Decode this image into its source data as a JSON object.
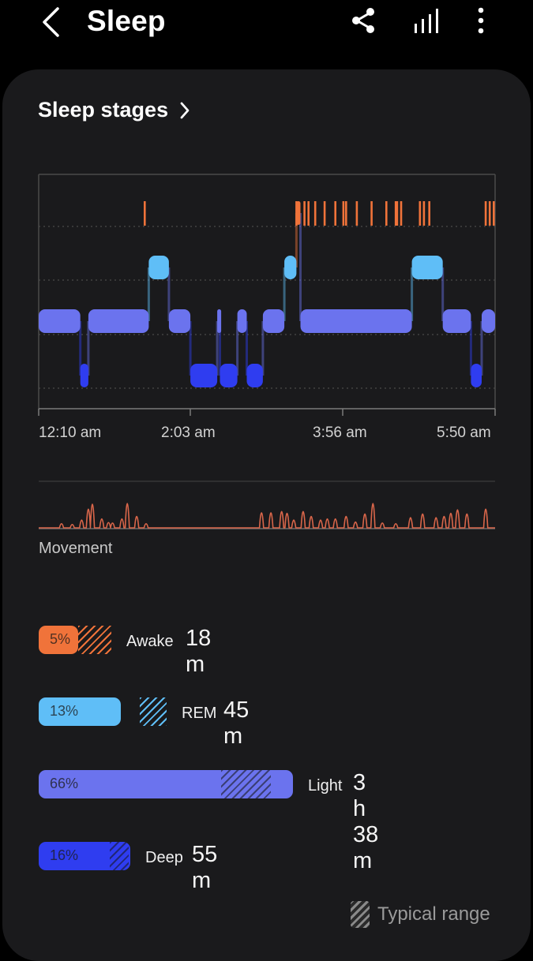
{
  "header": {
    "title": "Sleep"
  },
  "sleep_stages": {
    "title": "Sleep stages",
    "time_ticks": [
      "12:10 am",
      "2:03 am",
      "3:56 am",
      "5:50 am"
    ],
    "stage_colors": {
      "awake": "#f0733a",
      "rem": "#5fbef7",
      "light": "#6b73ee",
      "deep": "#2f3df0"
    },
    "hypnogram": [
      {
        "stage": "light",
        "start": "12:10",
        "end": "12:41"
      },
      {
        "stage": "deep",
        "start": "12:41",
        "end": "12:47"
      },
      {
        "stage": "light",
        "start": "12:47",
        "end": "1:32"
      },
      {
        "stage": "rem",
        "start": "1:32",
        "end": "1:47"
      },
      {
        "stage": "light",
        "start": "1:47",
        "end": "2:03"
      },
      {
        "stage": "deep",
        "start": "2:03",
        "end": "2:23"
      },
      {
        "stage": "light",
        "start": "2:23",
        "end": "2:25"
      },
      {
        "stage": "deep",
        "start": "2:25",
        "end": "2:38"
      },
      {
        "stage": "light",
        "start": "2:38",
        "end": "2:45"
      },
      {
        "stage": "deep",
        "start": "2:45",
        "end": "2:57"
      },
      {
        "stage": "light",
        "start": "2:57",
        "end": "3:13"
      },
      {
        "stage": "rem",
        "start": "3:13",
        "end": "3:22"
      },
      {
        "stage": "awake",
        "start": "3:22",
        "end": "3:25"
      },
      {
        "stage": "light",
        "start": "3:25",
        "end": "4:48"
      },
      {
        "stage": "rem",
        "start": "4:48",
        "end": "5:11"
      },
      {
        "stage": "light",
        "start": "5:11",
        "end": "5:32"
      },
      {
        "stage": "deep",
        "start": "5:32",
        "end": "5:40"
      },
      {
        "stage": "light",
        "start": "5:40",
        "end": "5:50"
      }
    ],
    "awake_marks": [
      "1:29",
      "3:22",
      "3:28",
      "3:31",
      "3:36",
      "3:43",
      "3:51",
      "3:57",
      "3:59",
      "4:07",
      "4:18",
      "4:29",
      "4:36",
      "4:37",
      "4:40",
      "4:54",
      "4:57",
      "5:01",
      "5:43",
      "5:46",
      "5:49"
    ]
  },
  "movement": {
    "label": "Movement",
    "events": [
      {
        "time": "12:27",
        "level": 0.15
      },
      {
        "time": "12:35",
        "level": 0.12
      },
      {
        "time": "12:42",
        "level": 0.3
      },
      {
        "time": "12:47",
        "level": 0.75
      },
      {
        "time": "12:50",
        "level": 0.95
      },
      {
        "time": "12:57",
        "level": 0.35
      },
      {
        "time": "1:02",
        "level": 0.2
      },
      {
        "time": "1:05",
        "level": 0.18
      },
      {
        "time": "1:12",
        "level": 0.35
      },
      {
        "time": "1:16",
        "level": 0.98
      },
      {
        "time": "1:23",
        "level": 0.45
      },
      {
        "time": "1:30",
        "level": 0.15
      },
      {
        "time": "2:56",
        "level": 0.6
      },
      {
        "time": "3:03",
        "level": 0.6
      },
      {
        "time": "3:11",
        "level": 0.65
      },
      {
        "time": "3:15",
        "level": 0.58
      },
      {
        "time": "3:20",
        "level": 0.3
      },
      {
        "time": "3:27",
        "level": 0.65
      },
      {
        "time": "3:33",
        "level": 0.45
      },
      {
        "time": "3:40",
        "level": 0.3
      },
      {
        "time": "3:45",
        "level": 0.35
      },
      {
        "time": "3:51",
        "level": 0.35
      },
      {
        "time": "3:59",
        "level": 0.45
      },
      {
        "time": "4:06",
        "level": 0.22
      },
      {
        "time": "4:13",
        "level": 0.55
      },
      {
        "time": "4:19",
        "level": 0.98
      },
      {
        "time": "4:26",
        "level": 0.18
      },
      {
        "time": "4:36",
        "level": 0.15
      },
      {
        "time": "4:47",
        "level": 0.4
      },
      {
        "time": "4:56",
        "level": 0.55
      },
      {
        "time": "5:06",
        "level": 0.4
      },
      {
        "time": "5:12",
        "level": 0.45
      },
      {
        "time": "5:17",
        "level": 0.58
      },
      {
        "time": "5:22",
        "level": 0.72
      },
      {
        "time": "5:29",
        "level": 0.55
      },
      {
        "time": "5:43",
        "level": 0.75
      }
    ]
  },
  "summary": [
    {
      "key": "awake",
      "pct": "5%",
      "name": "Awake",
      "duration": "18 m",
      "color": "#f0733a"
    },
    {
      "key": "rem",
      "pct": "13%",
      "name": "REM",
      "duration": "45 m",
      "color": "#5fbef7"
    },
    {
      "key": "light",
      "pct": "66%",
      "name": "Light",
      "duration": "3 h 38 m",
      "color": "#6b73ee"
    },
    {
      "key": "deep",
      "pct": "16%",
      "name": "Deep",
      "duration": "55 m",
      "color": "#2f3df0"
    }
  ],
  "legend": {
    "typical_range_label": "Typical range"
  },
  "icons": {
    "back": "chevron-left-icon",
    "share": "share-icon",
    "stats": "bar-chart-icon",
    "more": "more-vertical-icon",
    "section_arrow": "chevron-right-icon"
  }
}
